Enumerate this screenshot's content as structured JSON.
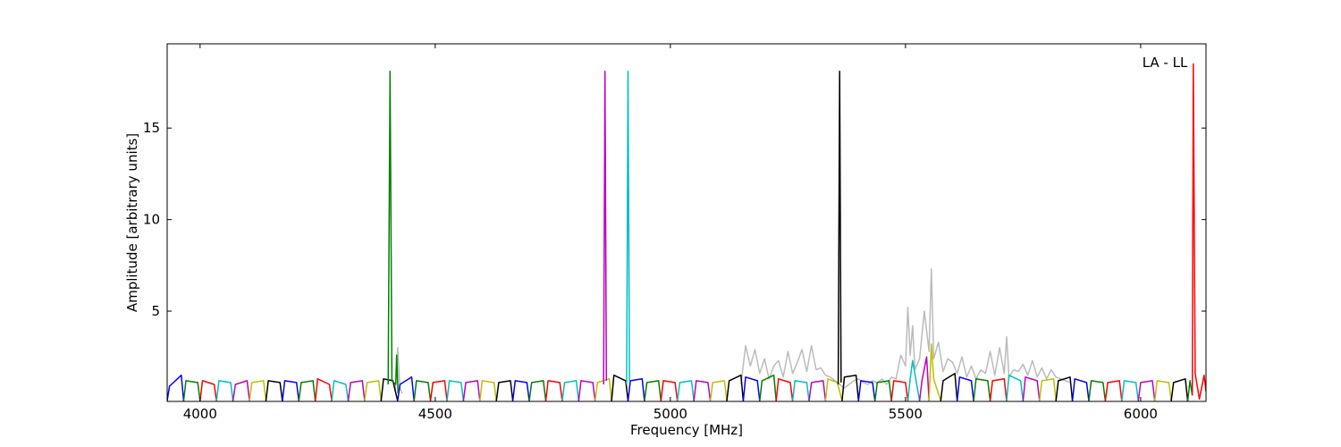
{
  "chart_data": {
    "type": "line",
    "annotation": "LA - LL",
    "x_label": "Frequency [MHz]",
    "y_label": "Amplitude [arbitrary units]",
    "xlim": [
      3930,
      6139
    ],
    "ylim": [
      0.07,
      19.6
    ],
    "xticks": [
      4000,
      4500,
      5000,
      5500,
      6000
    ],
    "yticks": [
      5,
      10,
      15
    ],
    "series": [
      {
        "color": "#bbbbbb",
        "x": [
          4415,
          4420,
          4425,
          4430
        ],
        "values": [
          0.6,
          3.0,
          0.8,
          0.5
        ]
      },
      {
        "color": "#bbbbbb",
        "x": [
          5150,
          5160,
          5170,
          5180,
          5190,
          5200,
          5210,
          5220,
          5230,
          5240,
          5250,
          5260,
          5270,
          5280,
          5290,
          5300,
          5310,
          5320,
          5330,
          5340,
          5350,
          5360,
          5370,
          5380,
          5390,
          5400,
          5410,
          5420,
          5430,
          5440,
          5450,
          5460,
          5470,
          5480,
          5490,
          5500,
          5505,
          5510,
          5515,
          5520,
          5530,
          5540,
          5550,
          5555,
          5560,
          5570,
          5580,
          5590,
          5600,
          5610,
          5620,
          5630,
          5640,
          5650,
          5660,
          5670,
          5680,
          5690,
          5700,
          5710,
          5715,
          5720,
          5730,
          5740,
          5750,
          5760,
          5770,
          5780,
          5790,
          5800,
          5810,
          5820,
          5830,
          5840,
          5850
        ],
        "values": [
          1.0,
          3.1,
          2.0,
          2.9,
          1.6,
          2.4,
          1.3,
          2.0,
          2.3,
          1.4,
          2.8,
          1.6,
          2.2,
          2.9,
          1.7,
          3.1,
          1.8,
          1.9,
          1.5,
          1.4,
          1.2,
          1.0,
          0.8,
          1.0,
          1.2,
          1.3,
          1.1,
          1.0,
          1.2,
          1.1,
          1.3,
          1.0,
          1.4,
          1.3,
          2.6,
          2.0,
          5.2,
          2.6,
          4.2,
          1.8,
          2.4,
          5.0,
          2.8,
          7.3,
          2.4,
          3.3,
          1.7,
          2.4,
          2.2,
          1.6,
          2.5,
          1.4,
          2.0,
          1.3,
          1.8,
          1.6,
          2.8,
          1.5,
          3.0,
          1.6,
          3.6,
          1.4,
          1.8,
          1.7,
          2.1,
          1.5,
          2.3,
          1.4,
          1.9,
          1.3,
          1.8,
          1.4,
          1.3,
          1.2,
          1.1
        ]
      },
      {
        "color": "#0000ff",
        "x": [
          3930,
          3935,
          3960,
          3965
        ],
        "values": [
          0.1,
          0.9,
          1.5,
          0.1
        ]
      },
      {
        "color": "#008000",
        "x": [
          3965,
          3970,
          3995,
          4000
        ],
        "values": [
          0.1,
          1.2,
          1.1,
          0.1
        ]
      },
      {
        "color": "#ff0000",
        "x": [
          4000,
          4005,
          4030,
          4035
        ],
        "values": [
          0.1,
          1.2,
          1.0,
          0.1
        ]
      },
      {
        "color": "#00bfbf",
        "x": [
          4035,
          4040,
          4065,
          4070
        ],
        "values": [
          0.1,
          1.2,
          1.1,
          0.1
        ]
      },
      {
        "color": "#bf00bf",
        "x": [
          4070,
          4075,
          4100,
          4105
        ],
        "values": [
          0.1,
          1.0,
          1.2,
          0.1
        ]
      },
      {
        "color": "#bfbf00",
        "x": [
          4105,
          4110,
          4135,
          4140
        ],
        "values": [
          0.1,
          1.1,
          1.2,
          0.1
        ]
      },
      {
        "color": "#000000",
        "x": [
          4140,
          4145,
          4170,
          4175
        ],
        "values": [
          0.1,
          1.2,
          1.1,
          0.1
        ]
      },
      {
        "color": "#0000ff",
        "x": [
          4175,
          4180,
          4205,
          4210
        ],
        "values": [
          0.1,
          1.2,
          1.1,
          0.1
        ]
      },
      {
        "color": "#008000",
        "x": [
          4210,
          4215,
          4240,
          4245
        ],
        "values": [
          0.1,
          1.1,
          1.2,
          0.1
        ]
      },
      {
        "color": "#ff0000",
        "x": [
          4245,
          4250,
          4275,
          4280
        ],
        "values": [
          0.1,
          1.3,
          1.0,
          0.1
        ]
      },
      {
        "color": "#00bfbf",
        "x": [
          4280,
          4285,
          4310,
          4315
        ],
        "values": [
          0.1,
          1.2,
          1.0,
          0.1
        ]
      },
      {
        "color": "#bf00bf",
        "x": [
          4315,
          4320,
          4345,
          4350
        ],
        "values": [
          0.1,
          1.1,
          1.2,
          0.1
        ]
      },
      {
        "color": "#bfbf00",
        "x": [
          4350,
          4355,
          4380,
          4385
        ],
        "values": [
          0.1,
          1.1,
          1.2,
          0.1
        ]
      },
      {
        "color": "#000000",
        "x": [
          4385,
          4390,
          4410,
          4420
        ],
        "values": [
          0.1,
          1.3,
          1.2,
          0.1
        ]
      },
      {
        "color": "#0000ff",
        "x": [
          4420,
          4425,
          4450,
          4455
        ],
        "values": [
          0.1,
          1.0,
          1.4,
          0.1
        ]
      },
      {
        "color": "#008000",
        "x": [
          4455,
          4460,
          4485,
          4490
        ],
        "values": [
          0.1,
          1.2,
          1.1,
          0.1
        ]
      },
      {
        "color": "#ff0000",
        "x": [
          4490,
          4495,
          4520,
          4525
        ],
        "values": [
          0.1,
          1.1,
          1.2,
          0.1
        ]
      },
      {
        "color": "#00bfbf",
        "x": [
          4525,
          4530,
          4555,
          4560
        ],
        "values": [
          0.1,
          1.2,
          1.1,
          0.1
        ]
      },
      {
        "color": "#bf00bf",
        "x": [
          4560,
          4565,
          4590,
          4595
        ],
        "values": [
          0.1,
          1.1,
          1.2,
          0.1
        ]
      },
      {
        "color": "#bfbf00",
        "x": [
          4595,
          4600,
          4625,
          4630
        ],
        "values": [
          0.1,
          1.2,
          1.1,
          0.1
        ]
      },
      {
        "color": "#000000",
        "x": [
          4630,
          4635,
          4660,
          4665
        ],
        "values": [
          0.1,
          1.1,
          1.2,
          0.1
        ]
      },
      {
        "color": "#0000ff",
        "x": [
          4665,
          4670,
          4695,
          4700
        ],
        "values": [
          0.1,
          1.2,
          1.1,
          0.1
        ]
      },
      {
        "color": "#008000",
        "x": [
          4700,
          4705,
          4730,
          4735
        ],
        "values": [
          0.1,
          1.1,
          1.2,
          0.1
        ]
      },
      {
        "color": "#ff0000",
        "x": [
          4735,
          4740,
          4765,
          4770
        ],
        "values": [
          0.1,
          1.2,
          1.1,
          0.1
        ]
      },
      {
        "color": "#00bfbf",
        "x": [
          4770,
          4775,
          4800,
          4805
        ],
        "values": [
          0.1,
          1.1,
          1.2,
          0.1
        ]
      },
      {
        "color": "#bf00bf",
        "x": [
          4805,
          4810,
          4835,
          4840
        ],
        "values": [
          0.1,
          1.2,
          1.1,
          0.1
        ]
      },
      {
        "color": "#bfbf00",
        "x": [
          4840,
          4845,
          4870,
          4875
        ],
        "values": [
          0.1,
          1.1,
          1.3,
          0.1
        ]
      },
      {
        "color": "#000000",
        "x": [
          4875,
          4880,
          4905,
          4910
        ],
        "values": [
          0.1,
          1.5,
          1.2,
          0.1
        ]
      },
      {
        "color": "#0000ff",
        "x": [
          4910,
          4915,
          4940,
          4945
        ],
        "values": [
          0.1,
          1.2,
          1.3,
          0.1
        ]
      },
      {
        "color": "#008000",
        "x": [
          4945,
          4950,
          4975,
          4980
        ],
        "values": [
          0.1,
          1.1,
          1.2,
          0.1
        ]
      },
      {
        "color": "#ff0000",
        "x": [
          4980,
          4985,
          5010,
          5015
        ],
        "values": [
          0.1,
          1.2,
          1.1,
          0.1
        ]
      },
      {
        "color": "#00bfbf",
        "x": [
          5015,
          5020,
          5045,
          5050
        ],
        "values": [
          0.1,
          1.1,
          1.2,
          0.1
        ]
      },
      {
        "color": "#bf00bf",
        "x": [
          5050,
          5055,
          5080,
          5085
        ],
        "values": [
          0.1,
          1.2,
          1.1,
          0.1
        ]
      },
      {
        "color": "#bfbf00",
        "x": [
          5085,
          5090,
          5115,
          5120
        ],
        "values": [
          0.1,
          1.1,
          1.2,
          0.1
        ]
      },
      {
        "color": "#000000",
        "x": [
          5120,
          5125,
          5150,
          5155
        ],
        "values": [
          0.1,
          1.2,
          1.5,
          0.1
        ]
      },
      {
        "color": "#0000ff",
        "x": [
          5155,
          5160,
          5185,
          5190
        ],
        "values": [
          0.1,
          1.4,
          1.2,
          0.1
        ]
      },
      {
        "color": "#008000",
        "x": [
          5190,
          5195,
          5220,
          5225
        ],
        "values": [
          0.1,
          1.2,
          1.5,
          0.1
        ]
      },
      {
        "color": "#ff0000",
        "x": [
          5225,
          5230,
          5255,
          5260
        ],
        "values": [
          0.1,
          1.3,
          1.1,
          0.1
        ]
      },
      {
        "color": "#00bfbf",
        "x": [
          5260,
          5265,
          5290,
          5295
        ],
        "values": [
          0.1,
          1.2,
          1.1,
          0.1
        ]
      },
      {
        "color": "#bf00bf",
        "x": [
          5295,
          5300,
          5325,
          5330
        ],
        "values": [
          0.1,
          1.1,
          1.2,
          0.1
        ]
      },
      {
        "color": "#bfbf00",
        "x": [
          5330,
          5335,
          5355,
          5365
        ],
        "values": [
          0.1,
          1.3,
          1.1,
          0.1
        ]
      },
      {
        "color": "#000000",
        "x": [
          5365,
          5370,
          5395,
          5400
        ],
        "values": [
          0.1,
          1.4,
          1.5,
          0.1
        ]
      },
      {
        "color": "#0000ff",
        "x": [
          5400,
          5405,
          5430,
          5435
        ],
        "values": [
          0.1,
          1.2,
          1.1,
          0.1
        ]
      },
      {
        "color": "#008000",
        "x": [
          5435,
          5440,
          5465,
          5470
        ],
        "values": [
          0.1,
          1.1,
          1.2,
          0.1
        ]
      },
      {
        "color": "#ff0000",
        "x": [
          5470,
          5475,
          5500,
          5505
        ],
        "values": [
          0.1,
          1.2,
          1.1,
          0.1
        ]
      },
      {
        "color": "#00bfbf",
        "x": [
          5505,
          5510,
          5515,
          5530
        ],
        "values": [
          0.1,
          1.3,
          2.3,
          0.1
        ]
      },
      {
        "color": "#bf00bf",
        "x": [
          5530,
          5535,
          5545,
          5550
        ],
        "values": [
          0.1,
          1.2,
          2.5,
          0.1
        ]
      },
      {
        "color": "#bfbf00",
        "x": [
          5550,
          5555,
          5560,
          5575
        ],
        "values": [
          0.1,
          3.2,
          1.3,
          0.1
        ]
      },
      {
        "color": "#000000",
        "x": [
          5575,
          5580,
          5605,
          5610
        ],
        "values": [
          0.1,
          1.2,
          1.6,
          0.1
        ]
      },
      {
        "color": "#0000ff",
        "x": [
          5610,
          5615,
          5640,
          5645
        ],
        "values": [
          0.1,
          1.4,
          1.2,
          0.1
        ]
      },
      {
        "color": "#008000",
        "x": [
          5645,
          5650,
          5675,
          5680
        ],
        "values": [
          0.1,
          1.3,
          1.2,
          0.1
        ]
      },
      {
        "color": "#ff0000",
        "x": [
          5680,
          5685,
          5710,
          5715
        ],
        "values": [
          0.1,
          1.2,
          1.3,
          0.1
        ]
      },
      {
        "color": "#00bfbf",
        "x": [
          5715,
          5720,
          5745,
          5750
        ],
        "values": [
          0.1,
          1.5,
          1.2,
          0.1
        ]
      },
      {
        "color": "#bf00bf",
        "x": [
          5750,
          5755,
          5780,
          5785
        ],
        "values": [
          0.1,
          1.4,
          1.2,
          0.1
        ]
      },
      {
        "color": "#bfbf00",
        "x": [
          5785,
          5790,
          5815,
          5820
        ],
        "values": [
          0.1,
          1.2,
          1.3,
          0.1
        ]
      },
      {
        "color": "#000000",
        "x": [
          5820,
          5825,
          5850,
          5855
        ],
        "values": [
          0.1,
          1.2,
          1.4,
          0.1
        ]
      },
      {
        "color": "#0000ff",
        "x": [
          5855,
          5860,
          5885,
          5890
        ],
        "values": [
          0.1,
          1.3,
          1.1,
          0.1
        ]
      },
      {
        "color": "#008000",
        "x": [
          5890,
          5895,
          5920,
          5925
        ],
        "values": [
          0.1,
          1.2,
          1.1,
          0.1
        ]
      },
      {
        "color": "#ff0000",
        "x": [
          5925,
          5930,
          5955,
          5960
        ],
        "values": [
          0.1,
          1.1,
          1.2,
          0.1
        ]
      },
      {
        "color": "#00bfbf",
        "x": [
          5960,
          5965,
          5990,
          5995
        ],
        "values": [
          0.1,
          1.2,
          1.1,
          0.1
        ]
      },
      {
        "color": "#bf00bf",
        "x": [
          5995,
          6000,
          6025,
          6030
        ],
        "values": [
          0.1,
          1.1,
          1.2,
          0.1
        ]
      },
      {
        "color": "#bfbf00",
        "x": [
          6030,
          6035,
          6060,
          6065
        ],
        "values": [
          0.1,
          1.2,
          1.1,
          0.1
        ]
      },
      {
        "color": "#000000",
        "x": [
          6065,
          6070,
          6095,
          6100
        ],
        "values": [
          0.1,
          1.1,
          1.3,
          0.1
        ]
      },
      {
        "color": "#008000",
        "x": [
          6100,
          6105,
          6110
        ],
        "values": [
          0.1,
          1.2,
          0.4
        ]
      },
      {
        "color": "#ff0000",
        "x": [
          6110,
          6112,
          6116,
          6125,
          6135,
          6139
        ],
        "values": [
          0.4,
          18.5,
          1.6,
          0.2,
          1.5,
          0.6
        ]
      },
      {
        "color": "#008000",
        "x": [
          4400,
          4404,
          4408,
          4416,
          4418,
          4421
        ],
        "values": [
          1.0,
          18.1,
          1.2,
          1.0,
          2.6,
          0.5
        ]
      },
      {
        "color": "#bf00bf",
        "x": [
          4858,
          4861,
          4864
        ],
        "values": [
          1.0,
          18.1,
          1.2
        ]
      },
      {
        "color": "#00bfbf",
        "x": [
          4907,
          4910,
          4913
        ],
        "values": [
          1.0,
          18.1,
          1.2
        ]
      },
      {
        "color": "#000000",
        "x": [
          5357,
          5360,
          5363
        ],
        "values": [
          1.0,
          18.1,
          1.1
        ]
      }
    ]
  }
}
